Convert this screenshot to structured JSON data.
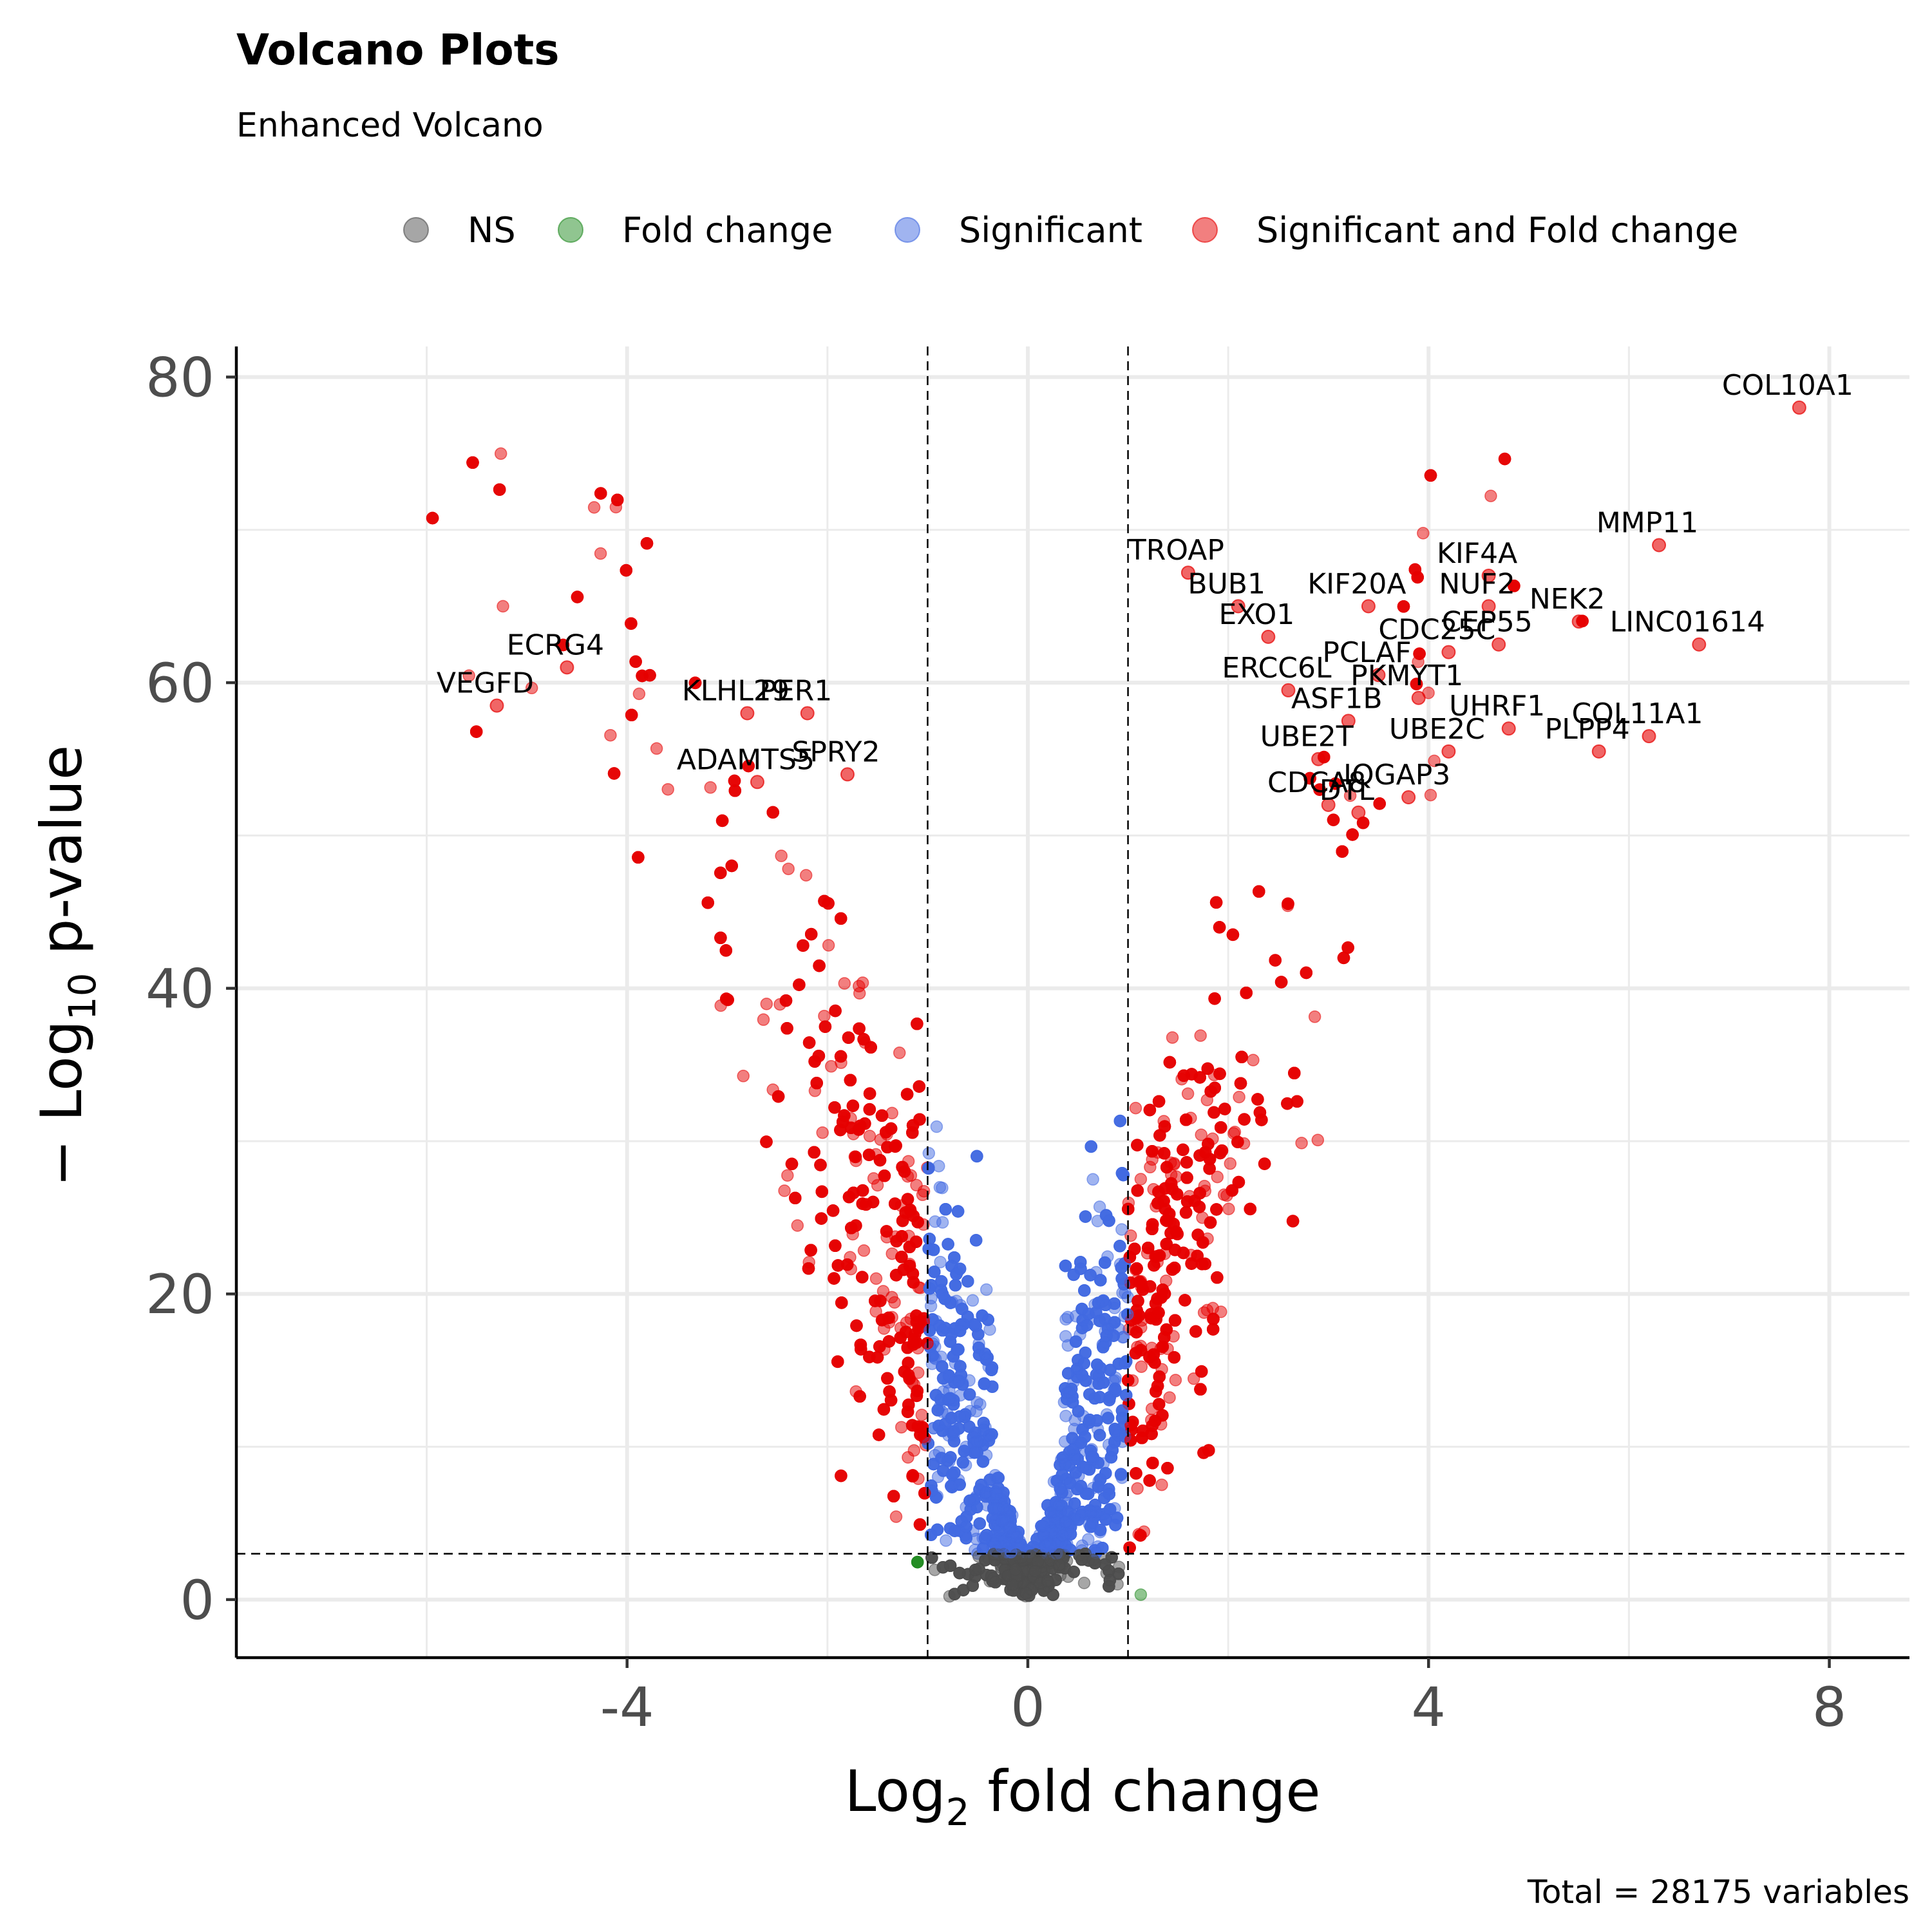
{
  "chart_data": {
    "type": "scatter",
    "title": "Volcano Plots",
    "subtitle": "Enhanced Volcano",
    "xlabel_main": "Log",
    "xlabel_sub": "2",
    "xlabel_rest": " fold change",
    "ylabel_prefix": "− Log",
    "ylabel_sub": "10",
    "ylabel_rest": " p-value",
    "caption": "Total = 28175 variables",
    "xlim": [
      -7.9,
      8.8
    ],
    "ylim": [
      -3.8,
      82
    ],
    "x_ticks": [
      -4,
      0,
      4,
      8
    ],
    "x_tick_labels": [
      "-4",
      "0",
      "4",
      "8"
    ],
    "y_ticks": [
      0,
      20,
      40,
      60,
      80
    ],
    "y_tick_labels": [
      "0",
      "20",
      "40",
      "60",
      "80"
    ],
    "grid": true,
    "legend_position": "top",
    "fc_cutoff": 1,
    "p_cutoff_log10": 3,
    "legend": [
      {
        "label": "NS",
        "color": "#4d4d4d"
      },
      {
        "label": "Fold change",
        "color": "#228b22"
      },
      {
        "label": "Significant",
        "color": "#4169e1"
      },
      {
        "label": "Significant and Fold change",
        "color": "#e60000"
      }
    ],
    "labeled_points": [
      {
        "gene": "COL10A1",
        "x": 7.7,
        "y": 78.0
      },
      {
        "gene": "MMP11",
        "x": 6.3,
        "y": 69.0
      },
      {
        "gene": "KIF4A",
        "x": 4.6,
        "y": 67.0
      },
      {
        "gene": "TROAP",
        "x": 1.6,
        "y": 67.2
      },
      {
        "gene": "BUB1",
        "x": 2.1,
        "y": 65.0
      },
      {
        "gene": "KIF20A",
        "x": 3.4,
        "y": 65.0
      },
      {
        "gene": "NUF2",
        "x": 4.6,
        "y": 65.0
      },
      {
        "gene": "NEK2",
        "x": 5.5,
        "y": 64.0
      },
      {
        "gene": "EXO1",
        "x": 2.4,
        "y": 63.0
      },
      {
        "gene": "CDC25C",
        "x": 4.2,
        "y": 62.0
      },
      {
        "gene": "CEP55",
        "x": 4.7,
        "y": 62.5
      },
      {
        "gene": "LINC01614",
        "x": 6.7,
        "y": 62.5
      },
      {
        "gene": "PCLAF",
        "x": 3.5,
        "y": 60.5
      },
      {
        "gene": "ECRG4",
        "x": -4.6,
        "y": 61.0
      },
      {
        "gene": "ERCC6L",
        "x": 2.6,
        "y": 59.5
      },
      {
        "gene": "PKMYT1",
        "x": 3.9,
        "y": 59.0
      },
      {
        "gene": "VEGFD",
        "x": -5.3,
        "y": 58.5
      },
      {
        "gene": "KLHL29",
        "x": -2.8,
        "y": 58.0
      },
      {
        "gene": "PER1",
        "x": -2.2,
        "y": 58.0
      },
      {
        "gene": "ASF1B",
        "x": 3.2,
        "y": 57.5
      },
      {
        "gene": "UHRF1",
        "x": 4.8,
        "y": 57.0
      },
      {
        "gene": "COL11A1",
        "x": 6.2,
        "y": 56.5
      },
      {
        "gene": "SPRY2",
        "x": -1.8,
        "y": 54.0
      },
      {
        "gene": "UBE2T",
        "x": 2.9,
        "y": 55.0
      },
      {
        "gene": "UBE2C",
        "x": 4.2,
        "y": 55.5
      },
      {
        "gene": "ADAMTS5",
        "x": -2.7,
        "y": 53.5
      },
      {
        "gene": "PLPP4",
        "x": 5.7,
        "y": 55.5
      },
      {
        "gene": "CDCA8",
        "x": 3.0,
        "y": 52.0
      },
      {
        "gene": "IQGAP3",
        "x": 3.8,
        "y": 52.5
      },
      {
        "gene": "DTL",
        "x": 3.3,
        "y": 51.5
      }
    ]
  }
}
